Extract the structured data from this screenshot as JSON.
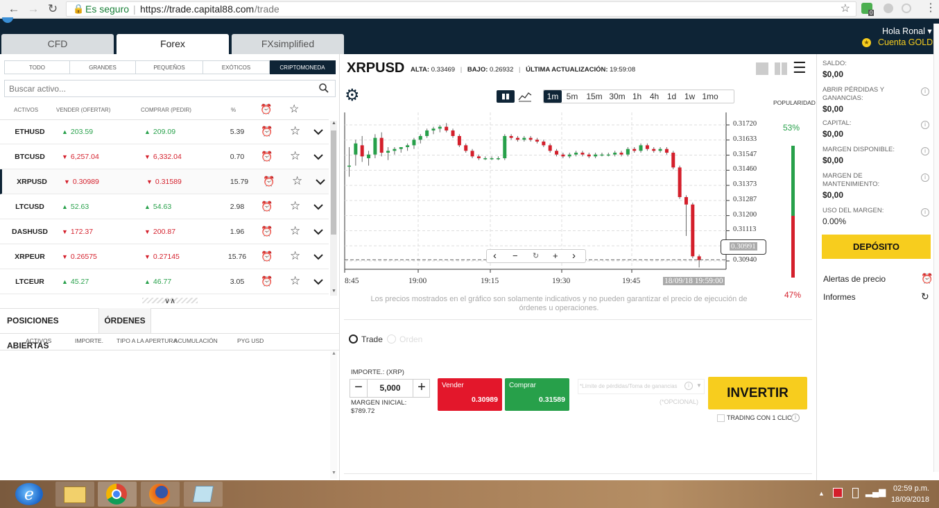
{
  "browser": {
    "secure_label": "Es seguro",
    "url_host": "https://trade.capital88.com",
    "url_path": "/trade",
    "ext_badge": "0"
  },
  "header": {
    "greeting": "Hola Ronal ▾",
    "account_type": "Cuenta GOLD"
  },
  "market_tabs": [
    "CFD",
    "Forex",
    "FXsimplified"
  ],
  "filters": [
    "TODO",
    "GRANDES",
    "PEQUEÑOS",
    "EXÓTICOS",
    "CRIPTOMONEDA"
  ],
  "search": {
    "placeholder": "Buscar activo..."
  },
  "table": {
    "headers": [
      "ACTIVOS",
      "VENDER (OFERTAR)",
      "COMPRAR (PEDIR)",
      "%"
    ],
    "rows": [
      {
        "symbol": "ETHUSD",
        "sell": "203.59",
        "sell_dir": "up",
        "buy": "209.09",
        "buy_dir": "up",
        "pct": "5.39"
      },
      {
        "symbol": "BTCUSD",
        "sell": "6,257.04",
        "sell_dir": "down",
        "buy": "6,332.04",
        "buy_dir": "down",
        "pct": "0.70"
      },
      {
        "symbol": "XRPUSD",
        "sell": "0.30989",
        "sell_dir": "down",
        "buy": "0.31589",
        "buy_dir": "down",
        "pct": "15.79"
      },
      {
        "symbol": "LTCUSD",
        "sell": "52.63",
        "sell_dir": "up",
        "buy": "54.63",
        "buy_dir": "up",
        "pct": "2.98"
      },
      {
        "symbol": "DASHUSD",
        "sell": "172.37",
        "sell_dir": "down",
        "buy": "200.87",
        "buy_dir": "down",
        "pct": "1.96"
      },
      {
        "symbol": "XRPEUR",
        "sell": "0.26575",
        "sell_dir": "down",
        "buy": "0.27145",
        "buy_dir": "down",
        "pct": "15.76"
      },
      {
        "symbol": "LTCEUR",
        "sell": "45.27",
        "sell_dir": "up",
        "buy": "46.77",
        "buy_dir": "up",
        "pct": "3.05"
      }
    ]
  },
  "positions": {
    "tabs": [
      "POSICIONES ABIERTAS",
      "ÓRDENES"
    ],
    "headers": [
      "ACTIVOS",
      "IMPORTE.",
      "TIPO A LA APERTURA",
      "ACUMULACIÓN",
      "PYG USD"
    ]
  },
  "instrument": {
    "symbol": "XRPUSD",
    "high_label": "ALTA:",
    "high": "0.33469",
    "low_label": "BAJO:",
    "low": "0.26932",
    "updated_label": "ÚLTIMA ACTUALIZACIÓN:",
    "updated": "19:59:08"
  },
  "timeframes": [
    "1m",
    "5m",
    "15m",
    "30m",
    "1h",
    "4h",
    "1d",
    "1w",
    "1mo"
  ],
  "chart_data": {
    "type": "candlestick",
    "y_ticks": [
      "0.31720",
      "0.31633",
      "0.31547",
      "0.31460",
      "0.31373",
      "0.31287",
      "0.31200",
      "0.31113",
      "0.31027",
      "0.30940"
    ],
    "x_ticks": [
      "8:45",
      "19:00",
      "19:15",
      "19:30",
      "19:45"
    ],
    "ylim": [
      0.3094,
      0.3172
    ],
    "current_price": "0.30991",
    "cursor_time": "18/09/18 19:59:00",
    "grid": true,
    "candles": [
      [
        0.315,
        0.316,
        0.3144,
        0.315
      ],
      [
        0.3156,
        0.3164,
        0.315,
        0.3162
      ],
      [
        0.3161,
        0.3166,
        0.3152,
        0.3155
      ],
      [
        0.3154,
        0.3158,
        0.315,
        0.3156
      ],
      [
        0.3156,
        0.3167,
        0.3154,
        0.3165
      ],
      [
        0.3165,
        0.3168,
        0.3155,
        0.3157
      ],
      [
        0.3157,
        0.316,
        0.3153,
        0.3158
      ],
      [
        0.3158,
        0.316,
        0.3156,
        0.3159
      ],
      [
        0.3159,
        0.316,
        0.3157,
        0.316
      ],
      [
        0.316,
        0.3162,
        0.3158,
        0.3161
      ],
      [
        0.3161,
        0.3165,
        0.3159,
        0.3164
      ],
      [
        0.3164,
        0.3167,
        0.3162,
        0.3166
      ],
      [
        0.3166,
        0.317,
        0.3165,
        0.3169
      ],
      [
        0.3169,
        0.3171,
        0.3167,
        0.317
      ],
      [
        0.317,
        0.3172,
        0.3168,
        0.3171
      ],
      [
        0.3171,
        0.3173,
        0.3168,
        0.3169
      ],
      [
        0.3169,
        0.317,
        0.3165,
        0.3166
      ],
      [
        0.3166,
        0.3167,
        0.316,
        0.3161
      ],
      [
        0.3161,
        0.3162,
        0.3157,
        0.3158
      ],
      [
        0.3158,
        0.3159,
        0.3154,
        0.3155
      ],
      [
        0.3155,
        0.3156,
        0.3153,
        0.3154
      ],
      [
        0.3154,
        0.3155,
        0.3153,
        0.3154
      ],
      [
        0.3154,
        0.3155,
        0.3153,
        0.3154
      ],
      [
        0.3154,
        0.3155,
        0.3153,
        0.3154
      ],
      [
        0.3154,
        0.3167,
        0.3153,
        0.3166
      ],
      [
        0.3166,
        0.3167,
        0.3164,
        0.3165
      ],
      [
        0.3165,
        0.3166,
        0.3163,
        0.3164
      ],
      [
        0.3164,
        0.3166,
        0.3163,
        0.3165
      ],
      [
        0.3165,
        0.3166,
        0.3163,
        0.3164
      ],
      [
        0.3164,
        0.3165,
        0.3162,
        0.3163
      ],
      [
        0.3163,
        0.3164,
        0.316,
        0.3161
      ],
      [
        0.3161,
        0.3162,
        0.3157,
        0.3158
      ],
      [
        0.3158,
        0.3159,
        0.3155,
        0.3156
      ],
      [
        0.3156,
        0.3157,
        0.3154,
        0.3155
      ],
      [
        0.3155,
        0.3157,
        0.3154,
        0.3156
      ],
      [
        0.3156,
        0.3158,
        0.3155,
        0.3157
      ],
      [
        0.3157,
        0.3158,
        0.3155,
        0.3156
      ],
      [
        0.3156,
        0.3157,
        0.3154,
        0.3155
      ],
      [
        0.3155,
        0.3157,
        0.3154,
        0.3156
      ],
      [
        0.3156,
        0.3157,
        0.3155,
        0.3156
      ],
      [
        0.3156,
        0.3157,
        0.3155,
        0.3156
      ],
      [
        0.3156,
        0.3158,
        0.3155,
        0.3157
      ],
      [
        0.3157,
        0.3158,
        0.3155,
        0.3156
      ],
      [
        0.3156,
        0.316,
        0.3155,
        0.3159
      ],
      [
        0.3159,
        0.316,
        0.3157,
        0.3158
      ],
      [
        0.3158,
        0.3162,
        0.3157,
        0.3161
      ],
      [
        0.3161,
        0.3162,
        0.3158,
        0.3159
      ],
      [
        0.3159,
        0.316,
        0.3157,
        0.3158
      ],
      [
        0.3158,
        0.316,
        0.3157,
        0.3159
      ],
      [
        0.3159,
        0.316,
        0.3156,
        0.3157
      ],
      [
        0.3157,
        0.3158,
        0.3148,
        0.3149
      ],
      [
        0.3149,
        0.315,
        0.3132,
        0.3133
      ],
      [
        0.3133,
        0.3134,
        0.3112,
        0.3129
      ],
      [
        0.3129,
        0.313,
        0.31,
        0.3101
      ],
      [
        0.3101,
        0.3102,
        0.3095,
        0.3099
      ]
    ]
  },
  "chart_nav": [
    "‹",
    "−",
    "↻",
    "+",
    "›"
  ],
  "popularity": {
    "label": "POPULARIDAD",
    "buy_pct": "53%",
    "sell_pct": "47%",
    "buy_value": 53,
    "sell_value": 47
  },
  "disclaimer": "Los precios mostrados en el gráfico son solamente indicativos y no pueden garantizar el precio de ejecución de órdenes u operaciones.",
  "order": {
    "mode_trade": "Trade",
    "mode_order": "Orden",
    "amount_label": "IMPORTE.: (XRP)",
    "amount": "5,000",
    "margin_label": "MARGEN INICIAL:",
    "margin": "$789.72",
    "sell_label": "Vender",
    "sell_price": "0.30989",
    "buy_label": "Comprar",
    "buy_price": "0.31589",
    "sl_placeholder": "*Límite de pérdidas/Toma de ganancias",
    "optional": "(*OPCIONAL)",
    "invest": "INVERTIR",
    "one_click": "TRADING CON 1 CLIC"
  },
  "account": {
    "items": [
      {
        "label": "SALDO:",
        "value": "$0,00"
      },
      {
        "label": "ABRIR PÉRDIDAS Y GANANCIAS:",
        "value": "$0,00"
      },
      {
        "label": "CAPITAL:",
        "value": "$0,00"
      },
      {
        "label": "MARGEN DISPONIBLE:",
        "value": "$0,00"
      },
      {
        "label": "MARGEN DE MANTENIMIENTO:",
        "value": "$0,00"
      },
      {
        "label": "USO DEL MARGEN:",
        "value": "0.00%"
      }
    ],
    "deposit": "DEPÓSITO",
    "links": [
      "Alertas de precio",
      "Informes"
    ]
  },
  "taskbar": {
    "time": "02:59 p.m.",
    "date": "18/09/2018"
  },
  "colors": {
    "accent": "#f7cd1e",
    "up": "#27a04a",
    "down": "#d41f2b",
    "header": "#0e2436"
  }
}
